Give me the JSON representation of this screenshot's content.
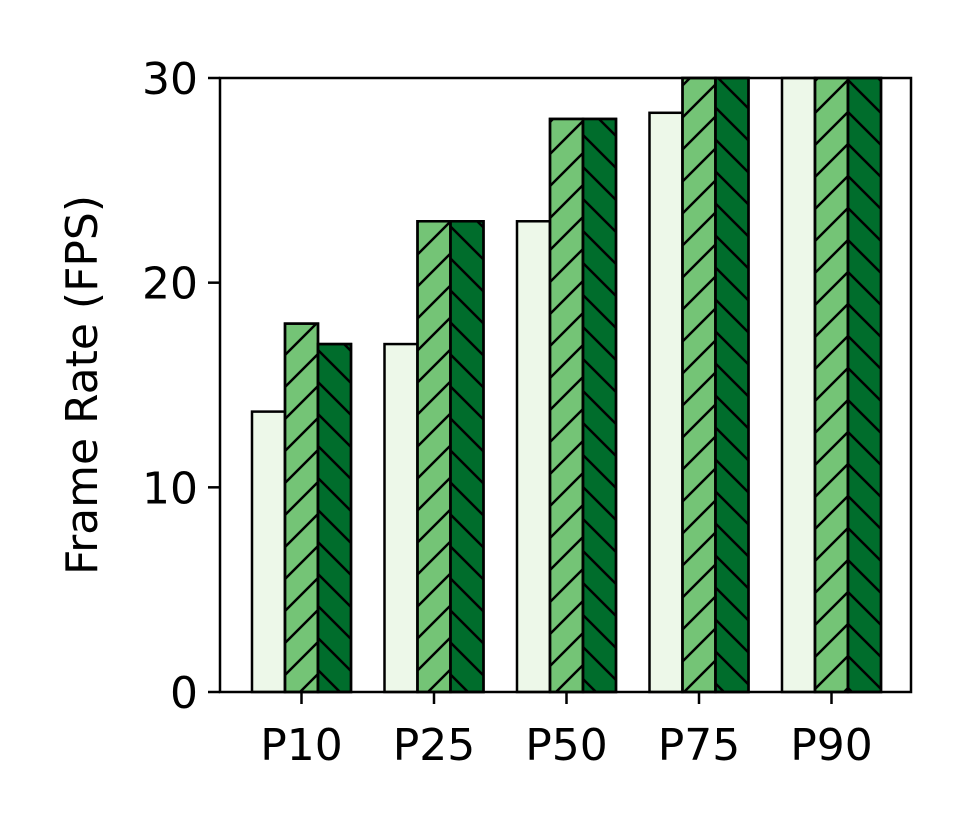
{
  "chart_data": {
    "type": "bar",
    "title": "",
    "xlabel": "",
    "ylabel": "Frame Rate (FPS)",
    "categories": [
      "P10",
      "P25",
      "P50",
      "P75",
      "P90"
    ],
    "ylim": [
      0,
      30
    ],
    "yticks": [
      0,
      10,
      20,
      30
    ],
    "grid": false,
    "legend": "none",
    "series": [
      {
        "values": [
          13.7,
          17.0,
          23.0,
          28.3,
          30.0
        ],
        "color": "#edf8e9",
        "hatch": "none"
      },
      {
        "values": [
          18.0,
          23.0,
          28.0,
          30.0,
          30.0
        ],
        "color": "#74c476",
        "hatch": "forward-diagonal"
      },
      {
        "values": [
          17.0,
          23.0,
          28.0,
          30.0,
          30.0
        ],
        "color": "#006d2c",
        "hatch": "backward-diagonal"
      }
    ]
  }
}
